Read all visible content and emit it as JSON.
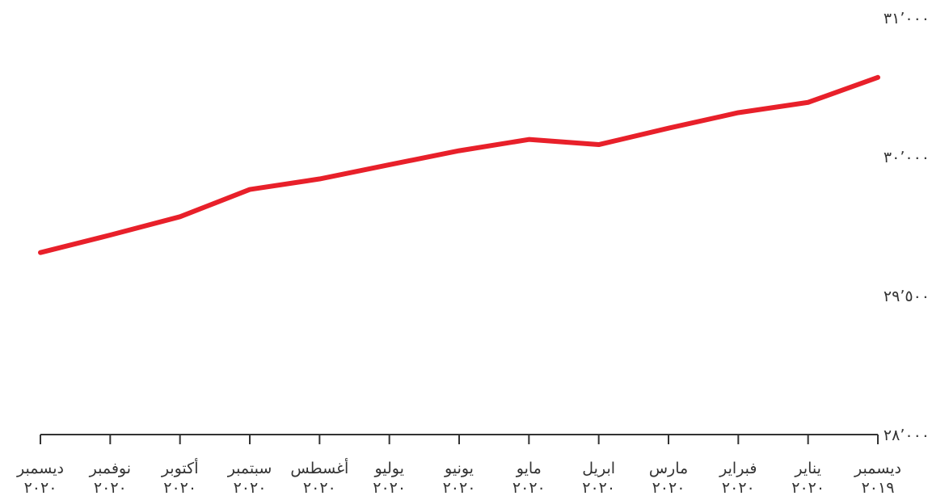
{
  "chart_data": {
    "type": "line",
    "categories": [
      "ديسمبر ٢٠١٩",
      "يناير ٢٠٢٠",
      "فبراير ٢٠٢٠",
      "مارس ٢٠٢٠",
      "ابريل ٢٠٢٠",
      "مايو ٢٠٢٠",
      "يونيو ٢٠٢٠",
      "يوليو ٢٠٢٠",
      "أغسطس ٢٠٢٠",
      "سبتمبر ٢٠٢٠",
      "أكتوبر ٢٠٢٠",
      "نوفمبر ٢٠٢٠",
      "ديسمبر ٢٠٢٠"
    ],
    "series": [
      {
        "color": "#e8202a",
        "values": [
          30571,
          30391,
          30317,
          30205,
          30087,
          30124,
          30043,
          29971,
          29920,
          29882,
          29784,
          29718,
          29655
        ]
      }
    ],
    "ylim": [
      28000,
      31000
    ],
    "yticks": [
      {
        "value": 28000,
        "label": "٢٨٬٠٠٠"
      },
      {
        "value": 29500,
        "label": "٢٩٬٥٠٠"
      },
      {
        "value": 30000,
        "label": "٣٠٬٠٠٠"
      },
      {
        "value": 31000,
        "label": "٣١٬٠٠٠"
      }
    ]
  }
}
